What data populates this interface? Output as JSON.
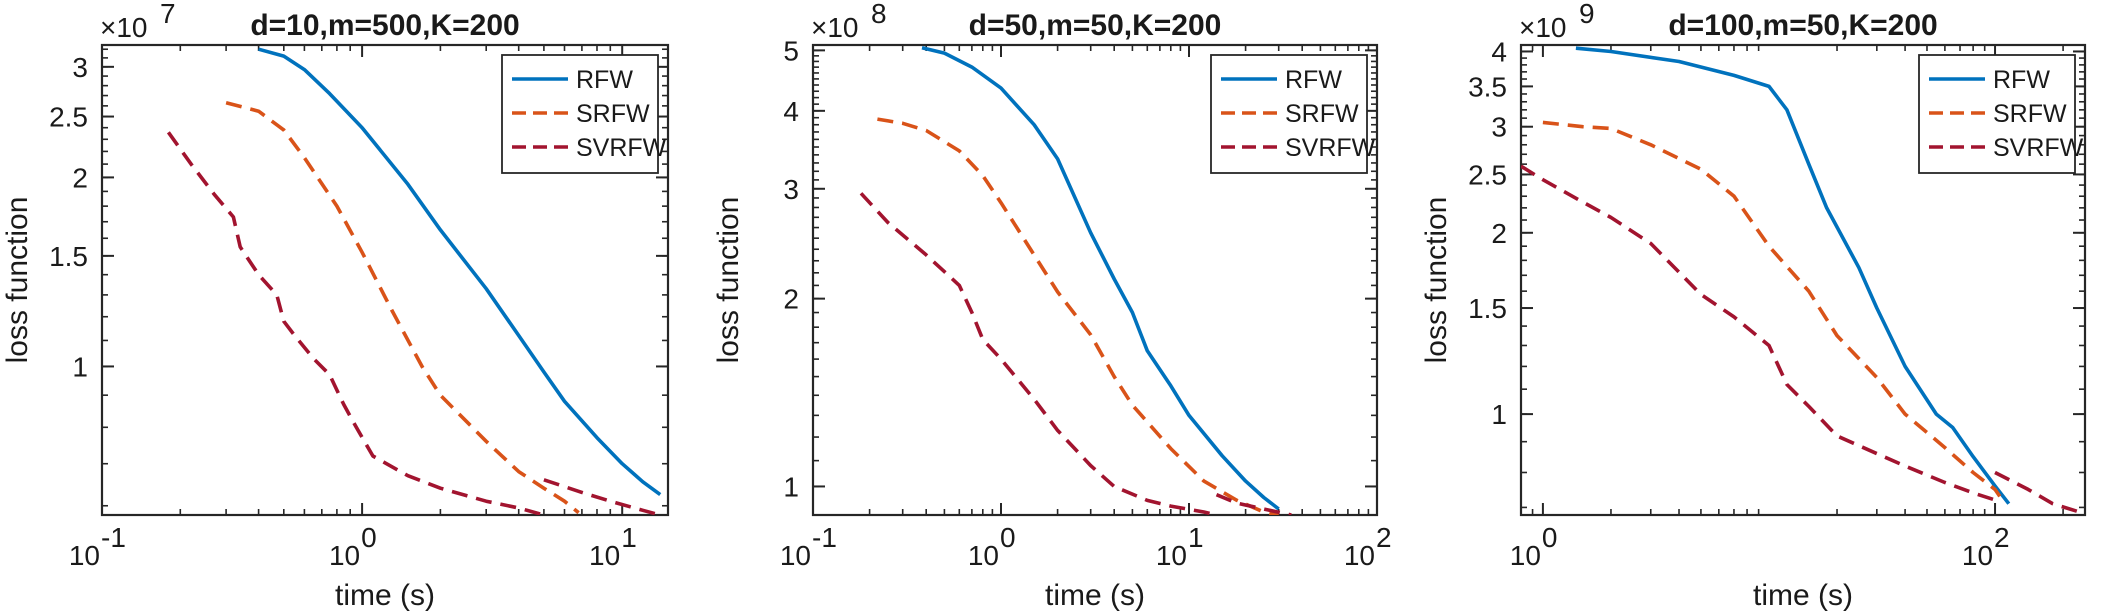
{
  "chart_data": [
    {
      "type": "line",
      "title": "d=10,m=500,K=200",
      "xlabel": "time (s)",
      "ylabel": "loss function",
      "xscale": "log",
      "yscale": "log",
      "xlim": [
        0.1,
        15
      ],
      "ylim": [
        0.58,
        3.25
      ],
      "multiplier": {
        "base": "×10",
        "exp": "7"
      },
      "xticks": [
        {
          "v": 0.1,
          "base": "10",
          "exp": "-1"
        },
        {
          "v": 1,
          "base": "10",
          "exp": "0"
        },
        {
          "v": 10,
          "base": "10",
          "exp": "1"
        }
      ],
      "yticks": [
        {
          "v": 1,
          "label": "1"
        },
        {
          "v": 1.5,
          "label": "1.5"
        },
        {
          "v": 2,
          "label": "2"
        },
        {
          "v": 2.5,
          "label": "2.5"
        },
        {
          "v": 3,
          "label": "3"
        }
      ],
      "legend": [
        "RFW",
        "SRFW",
        "SVRFW"
      ],
      "series": [
        {
          "name": "RFW",
          "color": "#0072BD",
          "dash": "",
          "points": [
            [
              0.4,
              3.2
            ],
            [
              0.5,
              3.12
            ],
            [
              0.6,
              2.97
            ],
            [
              0.75,
              2.72
            ],
            [
              1,
              2.4
            ],
            [
              1.5,
              1.95
            ],
            [
              2,
              1.65
            ],
            [
              3,
              1.33
            ],
            [
              4,
              1.12
            ],
            [
              5,
              0.98
            ],
            [
              6,
              0.88
            ],
            [
              8,
              0.77
            ],
            [
              10,
              0.7
            ],
            [
              12,
              0.655
            ],
            [
              14,
              0.625
            ]
          ]
        },
        {
          "name": "SRFW",
          "color": "#D95319",
          "dash": "16 9",
          "points": [
            [
              0.3,
              2.63
            ],
            [
              0.4,
              2.55
            ],
            [
              0.5,
              2.38
            ],
            [
              0.6,
              2.15
            ],
            [
              0.8,
              1.8
            ],
            [
              1,
              1.52
            ],
            [
              1.3,
              1.23
            ],
            [
              1.7,
              1.0
            ],
            [
              2,
              0.9
            ],
            [
              3,
              0.76
            ],
            [
              4,
              0.68
            ],
            [
              5,
              0.64
            ],
            [
              6,
              0.61
            ],
            [
              6.8,
              0.585
            ]
          ]
        },
        {
          "name": "SVRFW",
          "color": "#A2142F",
          "dash": "16 9",
          "points": [
            [
              0.18,
              2.36
            ],
            [
              0.22,
              2.1
            ],
            [
              0.27,
              1.88
            ],
            [
              0.32,
              1.73
            ],
            [
              0.34,
              1.55
            ],
            [
              0.4,
              1.4
            ],
            [
              0.47,
              1.3
            ],
            [
              0.5,
              1.18
            ],
            [
              0.55,
              1.12
            ],
            [
              0.65,
              1.03
            ],
            [
              0.75,
              0.97
            ],
            [
              0.85,
              0.87
            ],
            [
              0.95,
              0.8
            ],
            [
              1.1,
              0.72
            ],
            [
              1.5,
              0.67
            ],
            [
              2,
              0.64
            ],
            [
              3,
              0.61
            ],
            [
              4,
              0.595
            ],
            [
              5,
              0.58
            ]
          ]
        },
        {
          "name": "SVRFW",
          "color": "#A2142F",
          "dash": "16 9",
          "points": [
            [
              5,
              0.66
            ],
            [
              7,
              0.63
            ],
            [
              9,
              0.61
            ],
            [
              12,
              0.59
            ],
            [
              14,
              0.58
            ]
          ]
        }
      ]
    },
    {
      "type": "line",
      "title": "d=50,m=50,K=200",
      "xlabel": "time (s)",
      "ylabel": "loss function",
      "xscale": "log",
      "yscale": "log",
      "xlim": [
        0.1,
        100
      ],
      "ylim": [
        0.9,
        5.1
      ],
      "multiplier": {
        "base": "×10",
        "exp": "8"
      },
      "xticks": [
        {
          "v": 0.1,
          "base": "10",
          "exp": "-1"
        },
        {
          "v": 1,
          "base": "10",
          "exp": "0"
        },
        {
          "v": 10,
          "base": "10",
          "exp": "1"
        },
        {
          "v": 100,
          "base": "10",
          "exp": "2"
        }
      ],
      "yticks": [
        {
          "v": 1,
          "label": "1"
        },
        {
          "v": 2,
          "label": "2"
        },
        {
          "v": 3,
          "label": "3"
        },
        {
          "v": 4,
          "label": "4"
        },
        {
          "v": 5,
          "label": "5"
        }
      ],
      "legend": [
        "RFW",
        "SRFW",
        "SVRFW"
      ],
      "series": [
        {
          "name": "RFW",
          "color": "#0072BD",
          "dash": "",
          "points": [
            [
              0.38,
              5.05
            ],
            [
              0.5,
              4.95
            ],
            [
              0.7,
              4.7
            ],
            [
              1,
              4.35
            ],
            [
              1.5,
              3.8
            ],
            [
              2,
              3.35
            ],
            [
              3,
              2.55
            ],
            [
              4,
              2.15
            ],
            [
              5,
              1.9
            ],
            [
              6,
              1.65
            ],
            [
              8,
              1.45
            ],
            [
              10,
              1.3
            ],
            [
              15,
              1.12
            ],
            [
              20,
              1.02
            ],
            [
              25,
              0.96
            ],
            [
              30,
              0.92
            ]
          ]
        },
        {
          "name": "SRFW",
          "color": "#D95319",
          "dash": "16 9",
          "points": [
            [
              0.22,
              3.88
            ],
            [
              0.3,
              3.82
            ],
            [
              0.4,
              3.72
            ],
            [
              0.6,
              3.45
            ],
            [
              0.8,
              3.15
            ],
            [
              1,
              2.85
            ],
            [
              1.5,
              2.35
            ],
            [
              2,
              2.05
            ],
            [
              3,
              1.75
            ],
            [
              4,
              1.5
            ],
            [
              5,
              1.35
            ],
            [
              8,
              1.15
            ],
            [
              12,
              1.02
            ],
            [
              18,
              0.95
            ],
            [
              25,
              0.91
            ],
            [
              30,
              0.9
            ]
          ]
        },
        {
          "name": "SVRFW",
          "color": "#A2142F",
          "dash": "16 9",
          "points": [
            [
              0.18,
              2.95
            ],
            [
              0.25,
              2.65
            ],
            [
              0.4,
              2.35
            ],
            [
              0.6,
              2.1
            ],
            [
              0.7,
              1.9
            ],
            [
              0.8,
              1.72
            ],
            [
              1,
              1.6
            ],
            [
              1.5,
              1.38
            ],
            [
              2,
              1.23
            ],
            [
              3,
              1.08
            ],
            [
              4,
              1.0
            ],
            [
              6,
              0.95
            ],
            [
              8,
              0.93
            ],
            [
              12,
              0.91
            ],
            [
              14,
              0.9
            ]
          ]
        },
        {
          "name": "SVRFW",
          "color": "#A2142F",
          "dash": "16 9",
          "points": [
            [
              14,
              0.97
            ],
            [
              18,
              0.94
            ],
            [
              25,
              0.92
            ],
            [
              35,
              0.9
            ]
          ]
        }
      ]
    },
    {
      "type": "line",
      "title": "d=100,m=50,K=200",
      "xlabel": "time (s)",
      "ylabel": "loss function",
      "xscale": "log",
      "yscale": "log",
      "xlim": [
        0.8,
        250
      ],
      "ylim": [
        0.68,
        4.1
      ],
      "multiplier": {
        "base": "×10",
        "exp": "9"
      },
      "xticks": [
        {
          "v": 1,
          "base": "10",
          "exp": "0"
        },
        {
          "v": 100,
          "base": "10",
          "exp": "2"
        }
      ],
      "yticks": [
        {
          "v": 1,
          "label": "1"
        },
        {
          "v": 1.5,
          "label": "1.5"
        },
        {
          "v": 2,
          "label": "2"
        },
        {
          "v": 2.5,
          "label": "2.5"
        },
        {
          "v": 3,
          "label": "3"
        },
        {
          "v": 3.5,
          "label": "3.5"
        },
        {
          "v": 4,
          "label": "4"
        }
      ],
      "legend": [
        "RFW",
        "SRFW",
        "SVRFW"
      ],
      "series": [
        {
          "name": "RFW",
          "color": "#0072BD",
          "dash": "",
          "points": [
            [
              1.4,
              4.05
            ],
            [
              2,
              4.0
            ],
            [
              4,
              3.85
            ],
            [
              7,
              3.65
            ],
            [
              10,
              3.5
            ],
            [
              12,
              3.2
            ],
            [
              15,
              2.6
            ],
            [
              18,
              2.2
            ],
            [
              25,
              1.75
            ],
            [
              30,
              1.5
            ],
            [
              40,
              1.2
            ],
            [
              55,
              1.0
            ],
            [
              65,
              0.95
            ],
            [
              80,
              0.85
            ],
            [
              100,
              0.76
            ],
            [
              115,
              0.71
            ]
          ]
        },
        {
          "name": "SRFW",
          "color": "#D95319",
          "dash": "16 9",
          "points": [
            [
              1,
              3.05
            ],
            [
              1.5,
              3.0
            ],
            [
              2,
              2.98
            ],
            [
              3,
              2.8
            ],
            [
              5,
              2.55
            ],
            [
              7,
              2.3
            ],
            [
              10,
              1.9
            ],
            [
              15,
              1.6
            ],
            [
              20,
              1.35
            ],
            [
              30,
              1.15
            ],
            [
              40,
              1.0
            ],
            [
              60,
              0.88
            ],
            [
              80,
              0.8
            ],
            [
              100,
              0.75
            ],
            [
              105,
              0.73
            ]
          ]
        },
        {
          "name": "SVRFW",
          "color": "#A2142F",
          "dash": "16 9",
          "points": [
            [
              0.8,
              2.58
            ],
            [
              1,
              2.45
            ],
            [
              1.5,
              2.25
            ],
            [
              2,
              2.12
            ],
            [
              3,
              1.92
            ],
            [
              5,
              1.58
            ],
            [
              7,
              1.45
            ],
            [
              10,
              1.3
            ],
            [
              12,
              1.12
            ],
            [
              15,
              1.03
            ],
            [
              20,
              0.92
            ],
            [
              30,
              0.86
            ],
            [
              40,
              0.82
            ],
            [
              60,
              0.77
            ],
            [
              80,
              0.74
            ],
            [
              100,
              0.72
            ]
          ]
        },
        {
          "name": "SVRFW",
          "color": "#A2142F",
          "dash": "16 9",
          "points": [
            [
              100,
              0.8
            ],
            [
              140,
              0.75
            ],
            [
              180,
              0.71
            ],
            [
              230,
              0.69
            ]
          ]
        }
      ]
    }
  ]
}
